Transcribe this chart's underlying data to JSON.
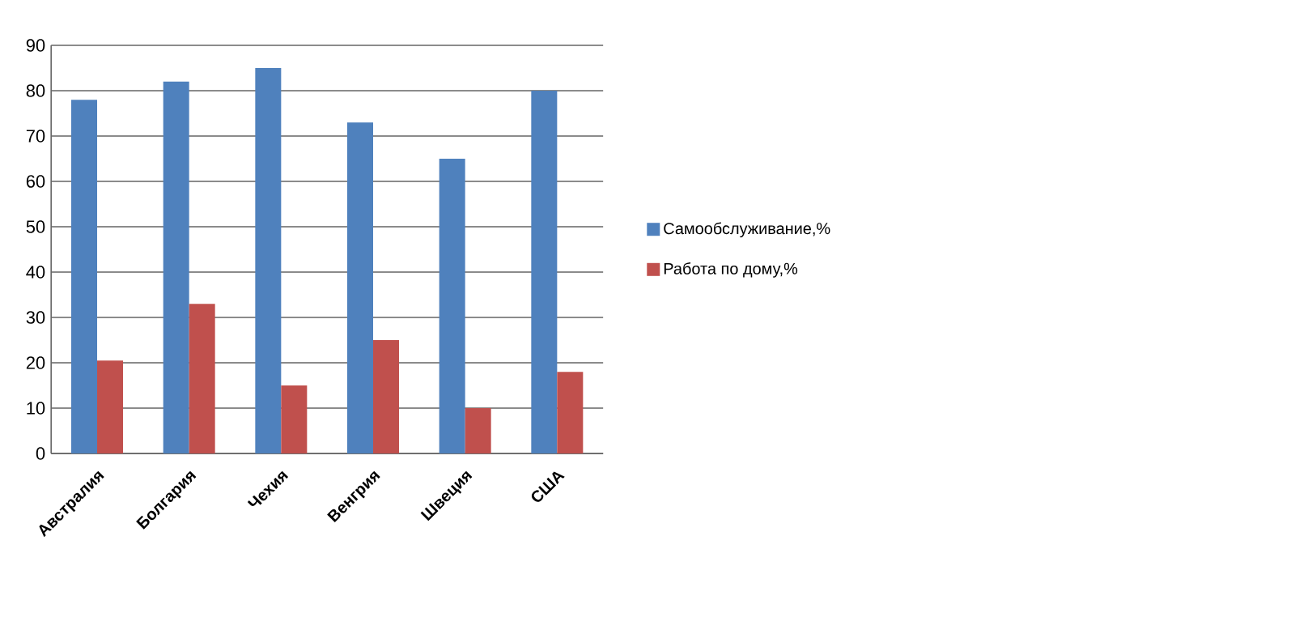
{
  "chart_data": {
    "type": "bar",
    "categories": [
      "Австралия",
      "Болгария",
      "Чехия",
      "Венгрия",
      "Швеция",
      "США"
    ],
    "series": [
      {
        "name": "Самообслуживание,%",
        "color": "#4f81bd",
        "values": [
          78,
          82,
          85,
          73,
          65,
          80
        ]
      },
      {
        "name": "Работа по дому,%",
        "color": "#c0504d",
        "values": [
          20.5,
          33,
          15,
          25,
          10,
          18
        ]
      }
    ],
    "ylim": [
      0,
      90
    ],
    "yticks": [
      0,
      10,
      20,
      30,
      40,
      50,
      60,
      70,
      80,
      90
    ],
    "grid": "y",
    "legend": "right"
  }
}
